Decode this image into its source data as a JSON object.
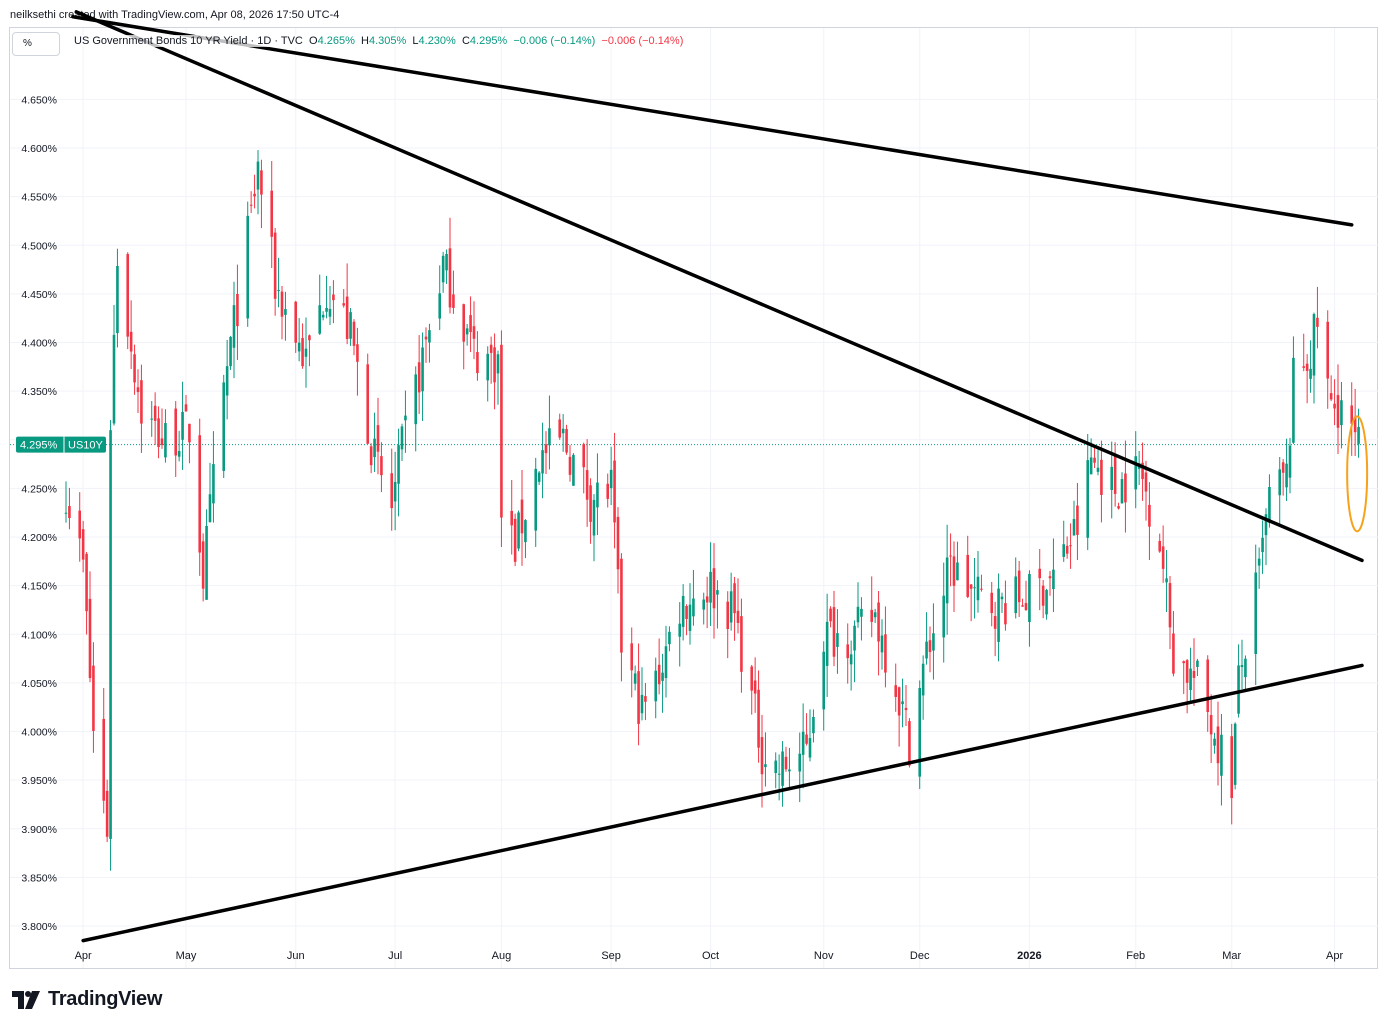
{
  "header": {
    "attribution": "neilksethi created with TradingView.com, Apr 08, 2026 17:50 UTC-4",
    "scale_button": "%"
  },
  "legend": {
    "title": "US Government Bonds 10 YR Yield · 1D · TVC",
    "o_label": "O",
    "o_value": "4.265%",
    "h_label": "H",
    "h_value": "4.305%",
    "l_label": "L",
    "l_value": "4.230%",
    "c_label": "C",
    "c_value": "4.295%",
    "change": "−0.006 (−0.14%)",
    "change2": "−0.006 (−0.14%)"
  },
  "price_tag": {
    "value": "4.295%",
    "symbol": "US10Y"
  },
  "brand": {
    "name": "TradingView"
  },
  "colors": {
    "up": "#089981",
    "down": "#f23645",
    "trendline": "#000000",
    "highlight": "#f7a21b",
    "grid": "#f0f3fa"
  },
  "chart_data": {
    "type": "candlestick",
    "title": "US Government Bonds 10 YR Yield · 1D · TVC",
    "ylabel": "",
    "y_unit": "%",
    "ylim": [
      3.78,
      4.69
    ],
    "y_ticks": [
      3.8,
      3.85,
      3.9,
      3.95,
      4.0,
      4.05,
      4.1,
      4.15,
      4.2,
      4.25,
      4.3,
      4.35,
      4.4,
      4.45,
      4.5,
      4.55,
      4.6,
      4.65
    ],
    "y_tick_labels": [
      "3.800%",
      "3.850%",
      "3.900%",
      "3.950%",
      "4.000%",
      "4.050%",
      "4.100%",
      "4.150%",
      "4.200%",
      "4.250%",
      "4.300%",
      "4.350%",
      "4.400%",
      "4.450%",
      "4.500%",
      "4.550%",
      "4.600%",
      "4.650%"
    ],
    "x_start": "2025-03-27",
    "x_end": "2026-04-09",
    "x_ticks": [
      {
        "label": "Apr",
        "date": "2025-04-01",
        "bold": false
      },
      {
        "label": "May",
        "date": "2025-05-01",
        "bold": false
      },
      {
        "label": "Jun",
        "date": "2025-06-02",
        "bold": false
      },
      {
        "label": "Jul",
        "date": "2025-07-01",
        "bold": false
      },
      {
        "label": "Aug",
        "date": "2025-08-01",
        "bold": false
      },
      {
        "label": "Sep",
        "date": "2025-09-02",
        "bold": false
      },
      {
        "label": "Oct",
        "date": "2025-10-01",
        "bold": false
      },
      {
        "label": "Nov",
        "date": "2025-11-03",
        "bold": false
      },
      {
        "label": "Dec",
        "date": "2025-12-01",
        "bold": false
      },
      {
        "label": "2026",
        "date": "2026-01-02",
        "bold": true
      },
      {
        "label": "Feb",
        "date": "2026-02-02",
        "bold": false
      },
      {
        "label": "Mar",
        "date": "2026-03-02",
        "bold": false
      },
      {
        "label": "Apr",
        "date": "2026-04-01",
        "bold": false
      }
    ],
    "last_price": 4.295,
    "trendlines": [
      {
        "name": "upper-descending",
        "from": {
          "date": "2025-03-29",
          "value": 4.735
        },
        "to": {
          "date": "2026-04-06",
          "value": 4.521
        }
      },
      {
        "name": "middle-descending",
        "from": {
          "date": "2025-03-30",
          "value": 4.74
        },
        "to": {
          "date": "2026-04-09",
          "value": 4.176
        }
      },
      {
        "name": "lower-ascending",
        "from": {
          "date": "2025-04-01",
          "value": 3.785
        },
        "to": {
          "date": "2026-04-09",
          "value": 4.068
        }
      }
    ],
    "highlight": {
      "date": "2026-04-07",
      "low": 4.21,
      "high": 4.32
    },
    "anchors": [
      [
        "2025-03-27",
        4.25
      ],
      [
        "2025-04-01",
        4.17
      ],
      [
        "2025-04-04",
        4.0
      ],
      [
        "2025-04-08",
        3.9
      ],
      [
        "2025-04-09",
        4.32
      ],
      [
        "2025-04-11",
        4.49
      ],
      [
        "2025-04-18",
        4.33
      ],
      [
        "2025-04-24",
        4.3
      ],
      [
        "2025-05-02",
        4.31
      ],
      [
        "2025-05-06",
        4.16
      ],
      [
        "2025-05-12",
        4.35
      ],
      [
        "2025-05-20",
        4.53
      ],
      [
        "2025-05-22",
        4.58
      ],
      [
        "2025-05-27",
        4.46
      ],
      [
        "2025-06-05",
        4.38
      ],
      [
        "2025-06-11",
        4.46
      ],
      [
        "2025-06-18",
        4.41
      ],
      [
        "2025-06-25",
        4.28
      ],
      [
        "2025-06-30",
        4.23
      ],
      [
        "2025-07-03",
        4.29
      ],
      [
        "2025-07-10",
        4.4
      ],
      [
        "2025-07-15",
        4.48
      ],
      [
        "2025-07-24",
        4.39
      ],
      [
        "2025-07-31",
        4.38
      ],
      [
        "2025-08-01",
        4.22
      ],
      [
        "2025-08-05",
        4.19
      ],
      [
        "2025-08-12",
        4.28
      ],
      [
        "2025-08-19",
        4.3
      ],
      [
        "2025-08-27",
        4.24
      ],
      [
        "2025-09-02",
        4.25
      ],
      [
        "2025-09-05",
        4.09
      ],
      [
        "2025-09-11",
        4.02
      ],
      [
        "2025-09-15",
        4.05
      ],
      [
        "2025-09-22",
        4.13
      ],
      [
        "2025-10-01",
        4.15
      ],
      [
        "2025-10-08",
        4.12
      ],
      [
        "2025-10-16",
        3.98
      ],
      [
        "2025-10-21",
        3.96
      ],
      [
        "2025-10-29",
        3.98
      ],
      [
        "2025-11-03",
        4.1
      ],
      [
        "2025-11-12",
        4.1
      ],
      [
        "2025-11-18",
        4.12
      ],
      [
        "2025-11-24",
        4.05
      ],
      [
        "2025-11-28",
        3.99
      ],
      [
        "2025-12-03",
        4.08
      ],
      [
        "2025-12-10",
        4.17
      ],
      [
        "2025-12-17",
        4.14
      ],
      [
        "2025-12-23",
        4.13
      ],
      [
        "2026-01-02",
        4.14
      ],
      [
        "2026-01-09",
        4.16
      ],
      [
        "2026-01-16",
        4.21
      ],
      [
        "2026-01-20",
        4.28
      ],
      [
        "2026-01-27",
        4.25
      ],
      [
        "2026-02-03",
        4.27
      ],
      [
        "2026-02-09",
        4.2
      ],
      [
        "2026-02-13",
        4.08
      ],
      [
        "2026-02-20",
        4.05
      ],
      [
        "2026-02-26",
        3.99
      ],
      [
        "2026-03-02",
        3.95
      ],
      [
        "2026-03-04",
        4.05
      ],
      [
        "2026-03-10",
        4.16
      ],
      [
        "2026-03-13",
        4.24
      ],
      [
        "2026-03-18",
        4.26
      ],
      [
        "2026-03-20",
        4.36
      ],
      [
        "2026-03-25",
        4.39
      ],
      [
        "2026-03-27",
        4.42
      ],
      [
        "2026-03-31",
        4.33
      ],
      [
        "2026-04-03",
        4.34
      ],
      [
        "2026-04-06",
        4.3
      ],
      [
        "2026-04-08",
        4.295
      ]
    ]
  }
}
